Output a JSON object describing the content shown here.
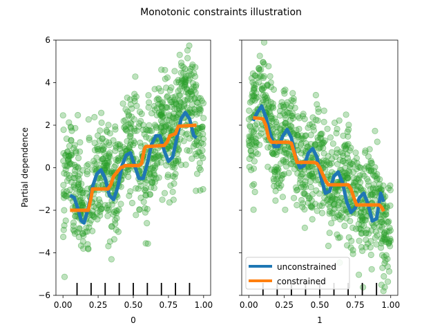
{
  "figure": {
    "title": "Monotonic constraints illustration"
  },
  "chart_data": [
    {
      "type": "line",
      "panel": "left",
      "xlabel": "0",
      "ylabel": "Partial dependence",
      "xlim": [
        -0.05,
        1.05
      ],
      "ylim": [
        -6,
        6
      ],
      "xticks": [
        0.0,
        0.25,
        0.5,
        0.75,
        1.0
      ],
      "xtick_labels": [
        "0.00",
        "0.25",
        "0.50",
        "0.75",
        "1.00"
      ],
      "yticks": [
        -6,
        -4,
        -2,
        0,
        2,
        4,
        6
      ],
      "ytick_labels": [
        "−6",
        "−4",
        "−2",
        "0",
        "2",
        "4",
        "6"
      ],
      "deciles": [
        0.1,
        0.2,
        0.3,
        0.4,
        0.5,
        0.6,
        0.7,
        0.8,
        0.9
      ],
      "scatter": {
        "color": "#2ca02c",
        "description": "samples: y ≈ 5x + sin(10πx) − 2.5 ± noise",
        "band_center": [
          [
            0.0,
            -1.0
          ],
          [
            0.05,
            0.2
          ],
          [
            0.1,
            -1.3
          ],
          [
            0.15,
            -2.3
          ],
          [
            0.2,
            -1.4
          ],
          [
            0.25,
            -0.5
          ],
          [
            0.3,
            0.0
          ],
          [
            0.35,
            -1.4
          ],
          [
            0.4,
            -0.6
          ],
          [
            0.45,
            1.0
          ],
          [
            0.5,
            1.5
          ],
          [
            0.55,
            0.2
          ],
          [
            0.6,
            0.0
          ],
          [
            0.65,
            1.2
          ],
          [
            0.7,
            2.2
          ],
          [
            0.75,
            1.4
          ],
          [
            0.8,
            1.6
          ],
          [
            0.85,
            3.4
          ],
          [
            0.9,
            3.6
          ],
          [
            0.95,
            2.0
          ],
          [
            1.0,
            1.6
          ]
        ],
        "band_halfwidth": 2.3
      },
      "series": [
        {
          "name": "unconstrained",
          "color": "#1f77b4",
          "x": [
            0.05,
            0.08,
            0.11,
            0.13,
            0.15,
            0.18,
            0.21,
            0.24,
            0.27,
            0.3,
            0.33,
            0.36,
            0.39,
            0.42,
            0.45,
            0.48,
            0.51,
            0.54,
            0.57,
            0.6,
            0.63,
            0.66,
            0.69,
            0.72,
            0.75,
            0.78,
            0.81,
            0.84,
            0.87,
            0.9,
            0.93,
            0.95
          ],
          "y": [
            -1.3,
            -1.4,
            -2.0,
            -2.5,
            -2.6,
            -1.9,
            -0.9,
            -0.3,
            -0.1,
            -0.5,
            -1.3,
            -1.5,
            -0.9,
            0.1,
            0.6,
            0.7,
            0.1,
            -0.5,
            -0.5,
            0.2,
            1.1,
            1.5,
            1.5,
            0.8,
            0.3,
            0.5,
            1.4,
            2.3,
            2.6,
            2.3,
            1.5,
            1.4
          ]
        },
        {
          "name": "constrained",
          "color": "#ff7f0e",
          "x": [
            0.05,
            0.18,
            0.2,
            0.21,
            0.32,
            0.34,
            0.36,
            0.41,
            0.43,
            0.44,
            0.54,
            0.56,
            0.57,
            0.58,
            0.59,
            0.61,
            0.72,
            0.74,
            0.76,
            0.8,
            0.82,
            0.95
          ],
          "y": [
            -2.0,
            -2.0,
            -1.4,
            -1.0,
            -1.0,
            -0.8,
            -0.4,
            0.0,
            0.05,
            0.1,
            0.1,
            0.2,
            0.6,
            0.9,
            1.0,
            1.0,
            1.05,
            1.2,
            1.5,
            1.6,
            1.95,
            2.0
          ]
        }
      ]
    },
    {
      "type": "line",
      "panel": "right",
      "xlabel": "1",
      "ylabel": "",
      "xlim": [
        -0.05,
        1.05
      ],
      "ylim": [
        -6,
        6
      ],
      "xticks": [
        0.0,
        0.25,
        0.5,
        0.75,
        1.0
      ],
      "xtick_labels": [
        "0.00",
        "0.25",
        "0.50",
        "0.75",
        "1.00"
      ],
      "yticks": [
        -6,
        -4,
        -2,
        0,
        2,
        4,
        6
      ],
      "deciles": [
        0.1,
        0.2,
        0.3,
        0.4,
        0.5,
        0.6,
        0.7,
        0.8,
        0.9
      ],
      "scatter": {
        "color": "#2ca02c",
        "description": "samples: y ≈ −5x + sin(10πx) + 2.5 ± noise",
        "band_center": [
          [
            0.0,
            1.5
          ],
          [
            0.05,
            2.6
          ],
          [
            0.1,
            3.4
          ],
          [
            0.15,
            2.2
          ],
          [
            0.2,
            0.6
          ],
          [
            0.25,
            1.1
          ],
          [
            0.3,
            1.5
          ],
          [
            0.35,
            0.4
          ],
          [
            0.4,
            -0.6
          ],
          [
            0.45,
            0.3
          ],
          [
            0.5,
            0.9
          ],
          [
            0.55,
            -0.5
          ],
          [
            0.6,
            -1.4
          ],
          [
            0.65,
            -0.6
          ],
          [
            0.7,
            -0.3
          ],
          [
            0.75,
            -1.6
          ],
          [
            0.8,
            -2.4
          ],
          [
            0.85,
            -1.4
          ],
          [
            0.9,
            -1.6
          ],
          [
            0.95,
            -3.0
          ],
          [
            1.0,
            -3.6
          ]
        ],
        "band_halfwidth": 2.3
      },
      "series": [
        {
          "name": "unconstrained",
          "color": "#1f77b4",
          "x": [
            0.03,
            0.06,
            0.09,
            0.12,
            0.15,
            0.18,
            0.21,
            0.24,
            0.27,
            0.3,
            0.33,
            0.36,
            0.39,
            0.42,
            0.45,
            0.48,
            0.51,
            0.54,
            0.57,
            0.6,
            0.63,
            0.66,
            0.69,
            0.72,
            0.75,
            0.78,
            0.81,
            0.84,
            0.87,
            0.9,
            0.93,
            0.95
          ],
          "y": [
            2.2,
            2.6,
            2.9,
            2.4,
            1.6,
            1.0,
            1.0,
            1.5,
            1.8,
            1.4,
            0.5,
            0.0,
            0.1,
            0.7,
            0.9,
            0.5,
            -0.5,
            -1.2,
            -1.1,
            -0.4,
            -0.2,
            -0.7,
            -1.6,
            -2.1,
            -1.9,
            -1.4,
            -1.2,
            -1.7,
            -2.5,
            -2.4,
            -1.2,
            -1.6
          ]
        },
        {
          "name": "constrained",
          "color": "#ff7f0e",
          "x": [
            0.03,
            0.1,
            0.12,
            0.14,
            0.16,
            0.28,
            0.3,
            0.32,
            0.34,
            0.46,
            0.48,
            0.5,
            0.52,
            0.54,
            0.56,
            0.7,
            0.72,
            0.74,
            0.76,
            0.92,
            0.94,
            0.95
          ],
          "y": [
            2.35,
            2.3,
            2.0,
            1.4,
            1.2,
            1.2,
            1.15,
            0.7,
            0.25,
            0.25,
            0.2,
            0.0,
            -0.3,
            -0.6,
            -0.8,
            -0.8,
            -1.0,
            -1.4,
            -1.75,
            -1.75,
            -1.9,
            -2.05
          ]
        }
      ],
      "legend": {
        "position": "lower-left",
        "entries": [
          "unconstrained",
          "constrained"
        ]
      }
    }
  ]
}
